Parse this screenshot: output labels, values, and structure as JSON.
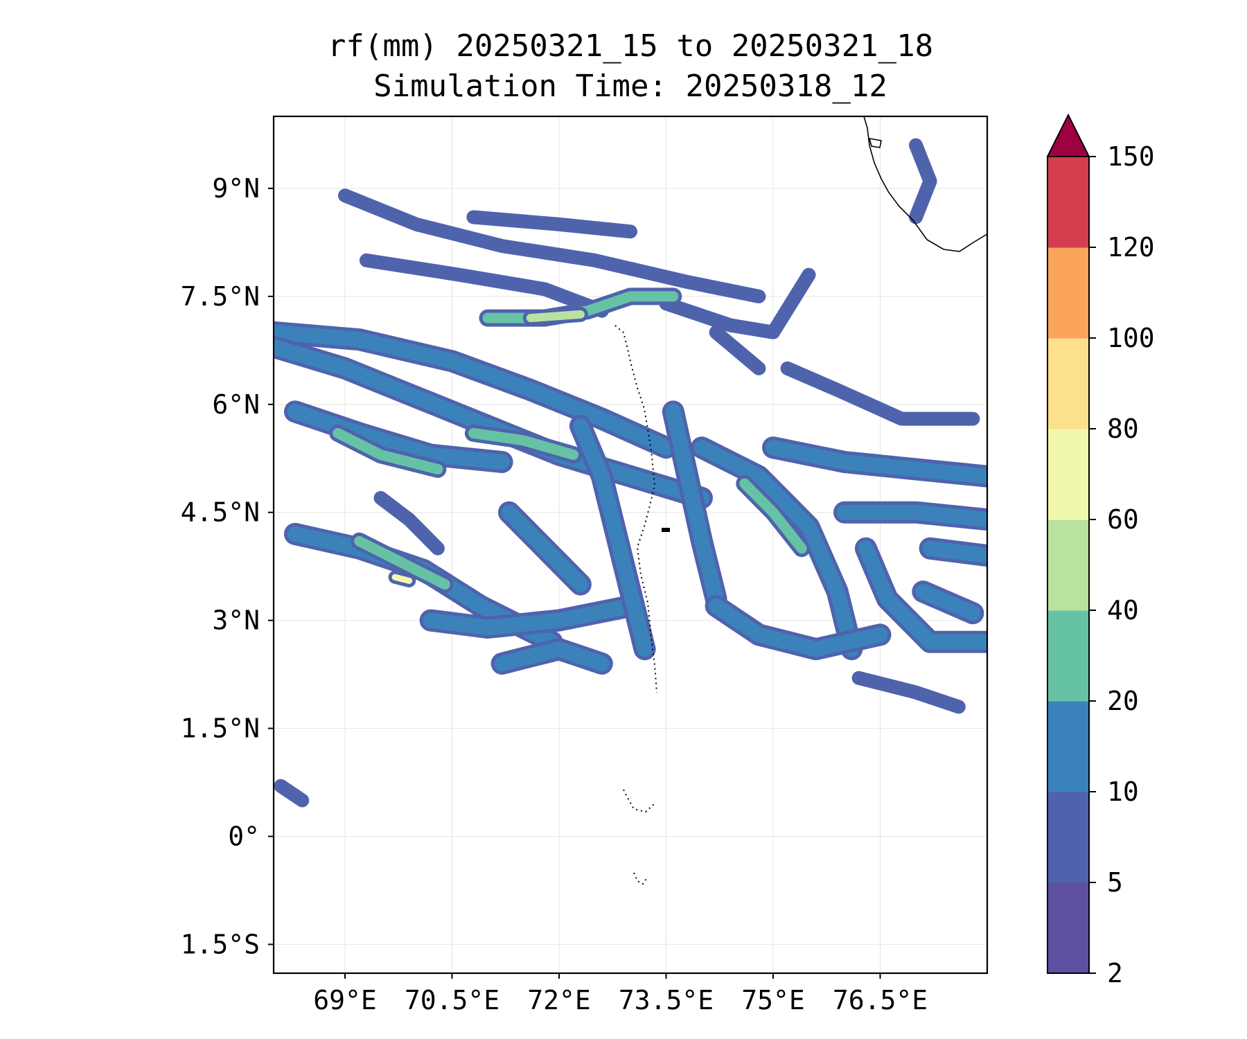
{
  "title": {
    "line1": "rf(mm) 20250321_15 to 20250321_18",
    "line2": "Simulation Time: 20250318_12"
  },
  "map": {
    "lon_range": [
      68.0,
      78.0
    ],
    "lat_range": [
      -1.9,
      10.0
    ],
    "gridlines": true,
    "x_ticks": [
      {
        "value": 69.0,
        "label": "69°E"
      },
      {
        "value": 70.5,
        "label": "70.5°E"
      },
      {
        "value": 72.0,
        "label": "72°E"
      },
      {
        "value": 73.5,
        "label": "73.5°E"
      },
      {
        "value": 75.0,
        "label": "75°E"
      },
      {
        "value": 76.5,
        "label": "76.5°E"
      }
    ],
    "y_ticks": [
      {
        "value": 9.0,
        "label": "9°N"
      },
      {
        "value": 7.5,
        "label": "7.5°N"
      },
      {
        "value": 6.0,
        "label": "6°N"
      },
      {
        "value": 4.5,
        "label": "4.5°N"
      },
      {
        "value": 3.0,
        "label": "3°N"
      },
      {
        "value": 1.5,
        "label": "1.5°N"
      },
      {
        "value": 0.0,
        "label": "0°"
      },
      {
        "value": -1.5,
        "label": "1.5°S"
      }
    ],
    "rain_bands": [
      {
        "level": 5,
        "pts": [
          [
            69.0,
            8.9
          ],
          [
            70.0,
            8.5
          ],
          [
            71.2,
            8.2
          ],
          [
            72.5,
            8.0
          ],
          [
            73.8,
            7.7
          ],
          [
            74.8,
            7.5
          ]
        ]
      },
      {
        "level": 5,
        "pts": [
          [
            70.8,
            8.6
          ],
          [
            72.0,
            8.5
          ],
          [
            73.0,
            8.4
          ]
        ]
      },
      {
        "level": 5,
        "pts": [
          [
            69.3,
            8.0
          ],
          [
            70.6,
            7.8
          ],
          [
            71.8,
            7.6
          ],
          [
            72.6,
            7.3
          ]
        ]
      },
      {
        "level": 10,
        "pts": [
          [
            68.0,
            7.0
          ],
          [
            69.2,
            6.9
          ],
          [
            70.5,
            6.6
          ],
          [
            71.6,
            6.2
          ],
          [
            72.6,
            5.8
          ],
          [
            73.5,
            5.4
          ]
        ]
      },
      {
        "level": 10,
        "pts": [
          [
            68.0,
            6.8
          ],
          [
            69.0,
            6.5
          ],
          [
            70.0,
            6.1
          ],
          [
            71.0,
            5.7
          ],
          [
            72.0,
            5.3
          ],
          [
            73.0,
            5.0
          ],
          [
            74.0,
            4.7
          ]
        ]
      },
      {
        "level": 5,
        "pts": [
          [
            73.5,
            7.4
          ],
          [
            74.4,
            7.1
          ],
          [
            75.0,
            7.0
          ],
          [
            75.5,
            7.8
          ]
        ]
      },
      {
        "level": 20,
        "pts": [
          [
            71.0,
            7.2
          ],
          [
            71.8,
            7.2
          ],
          [
            72.4,
            7.3
          ],
          [
            73.0,
            7.5
          ],
          [
            73.6,
            7.5
          ]
        ]
      },
      {
        "level": 40,
        "pts": [
          [
            71.6,
            7.2
          ],
          [
            72.3,
            7.25
          ]
        ]
      },
      {
        "level": 10,
        "pts": [
          [
            68.3,
            5.9
          ],
          [
            69.2,
            5.6
          ],
          [
            70.2,
            5.3
          ],
          [
            71.2,
            5.2
          ]
        ]
      },
      {
        "level": 20,
        "pts": [
          [
            68.9,
            5.6
          ],
          [
            69.5,
            5.3
          ],
          [
            70.3,
            5.1
          ]
        ]
      },
      {
        "level": 20,
        "pts": [
          [
            70.8,
            5.6
          ],
          [
            71.5,
            5.5
          ],
          [
            72.2,
            5.3
          ]
        ]
      },
      {
        "level": 10,
        "pts": [
          [
            68.3,
            4.2
          ],
          [
            69.2,
            4.0
          ],
          [
            70.1,
            3.7
          ],
          [
            70.9,
            3.2
          ],
          [
            71.9,
            2.7
          ]
        ]
      },
      {
        "level": 20,
        "pts": [
          [
            69.2,
            4.1
          ],
          [
            69.8,
            3.8
          ],
          [
            70.4,
            3.5
          ]
        ]
      },
      {
        "level": 60,
        "pts": [
          [
            69.7,
            3.6
          ],
          [
            69.9,
            3.55
          ]
        ]
      },
      {
        "level": 10,
        "pts": [
          [
            70.2,
            3.0
          ],
          [
            71.0,
            2.9
          ],
          [
            72.0,
            3.0
          ],
          [
            73.0,
            3.2
          ]
        ]
      },
      {
        "level": 10,
        "pts": [
          [
            71.2,
            2.4
          ],
          [
            72.0,
            2.6
          ],
          [
            72.6,
            2.4
          ]
        ]
      },
      {
        "level": 10,
        "pts": [
          [
            72.3,
            5.7
          ],
          [
            72.6,
            5.0
          ],
          [
            72.8,
            4.2
          ],
          [
            73.0,
            3.4
          ],
          [
            73.2,
            2.6
          ]
        ]
      },
      {
        "level": 10,
        "pts": [
          [
            73.6,
            5.9
          ],
          [
            73.8,
            5.0
          ],
          [
            74.0,
            4.1
          ],
          [
            74.2,
            3.3
          ]
        ]
      },
      {
        "level": 10,
        "pts": [
          [
            74.0,
            5.4
          ],
          [
            74.8,
            5.0
          ],
          [
            75.5,
            4.3
          ],
          [
            75.9,
            3.4
          ],
          [
            76.1,
            2.6
          ]
        ]
      },
      {
        "level": 20,
        "pts": [
          [
            74.6,
            4.9
          ],
          [
            75.0,
            4.5
          ],
          [
            75.4,
            4.0
          ]
        ]
      },
      {
        "level": 10,
        "pts": [
          [
            74.2,
            3.2
          ],
          [
            74.8,
            2.8
          ],
          [
            75.6,
            2.6
          ],
          [
            76.5,
            2.8
          ]
        ]
      },
      {
        "level": 10,
        "pts": [
          [
            75.0,
            5.4
          ],
          [
            76.0,
            5.2
          ],
          [
            77.0,
            5.1
          ],
          [
            78.0,
            5.0
          ]
        ]
      },
      {
        "level": 10,
        "pts": [
          [
            76.0,
            4.5
          ],
          [
            77.0,
            4.5
          ],
          [
            78.0,
            4.4
          ]
        ]
      },
      {
        "level": 10,
        "pts": [
          [
            76.3,
            4.0
          ],
          [
            76.6,
            3.3
          ],
          [
            77.2,
            2.7
          ],
          [
            78.0,
            2.7
          ]
        ]
      },
      {
        "level": 5,
        "pts": [
          [
            76.2,
            2.2
          ],
          [
            77.0,
            2.0
          ],
          [
            77.6,
            1.8
          ]
        ]
      },
      {
        "level": 10,
        "pts": [
          [
            77.2,
            4.0
          ],
          [
            78.0,
            3.9
          ]
        ]
      },
      {
        "level": 10,
        "pts": [
          [
            77.1,
            3.4
          ],
          [
            77.8,
            3.1
          ]
        ]
      },
      {
        "level": 5,
        "pts": [
          [
            77.0,
            9.6
          ],
          [
            77.2,
            9.1
          ],
          [
            77.0,
            8.6
          ]
        ]
      },
      {
        "level": 5,
        "pts": [
          [
            75.2,
            6.5
          ],
          [
            75.9,
            6.2
          ],
          [
            76.8,
            5.8
          ],
          [
            77.8,
            5.8
          ]
        ]
      },
      {
        "level": 5,
        "pts": [
          [
            74.2,
            7.0
          ],
          [
            74.8,
            6.5
          ]
        ]
      },
      {
        "level": 5,
        "pts": [
          [
            68.1,
            0.7
          ],
          [
            68.4,
            0.5
          ]
        ]
      },
      {
        "level": 5,
        "pts": [
          [
            69.5,
            4.7
          ],
          [
            69.9,
            4.4
          ],
          [
            70.3,
            4.0
          ]
        ]
      },
      {
        "level": 10,
        "pts": [
          [
            71.3,
            4.5
          ],
          [
            71.8,
            4.0
          ],
          [
            72.3,
            3.5
          ]
        ]
      }
    ]
  },
  "colorbar": {
    "levels": [
      2,
      5,
      10,
      20,
      40,
      60,
      80,
      100,
      120,
      150
    ],
    "colors": [
      "#5e4fa2",
      "#4f63ad",
      "#3b82bb",
      "#66c2a5",
      "#b9e1a0",
      "#f1f8ad",
      "#fde08b",
      "#fba45c",
      "#d53e4f"
    ],
    "extend_color": "#9e0142",
    "labels": [
      "2",
      "5",
      "10",
      "20",
      "40",
      "60",
      "80",
      "100",
      "120",
      "150"
    ]
  }
}
